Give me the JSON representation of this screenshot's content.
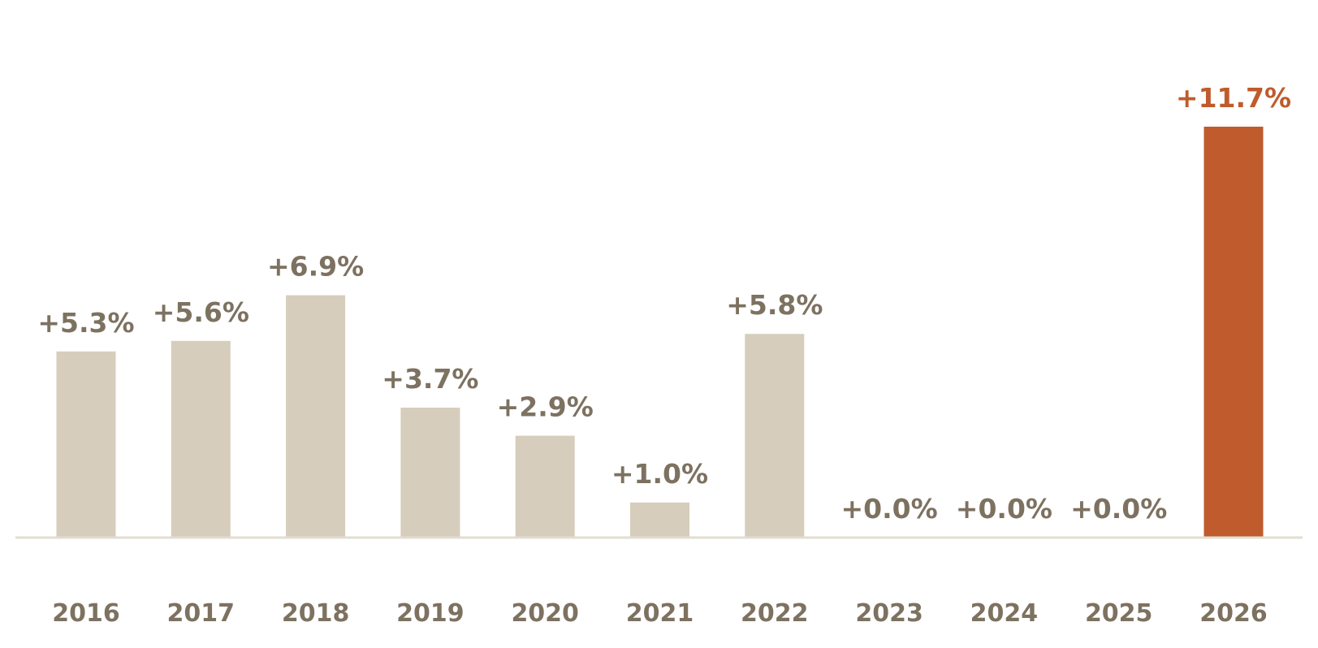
{
  "chart_data": {
    "type": "bar",
    "title": "",
    "xlabel": "",
    "ylabel": "",
    "categories": [
      "2016",
      "2017",
      "2018",
      "2019",
      "2020",
      "2021",
      "2022",
      "2023",
      "2024",
      "2025",
      "2026"
    ],
    "values": [
      5.3,
      5.6,
      6.9,
      3.7,
      2.9,
      1.0,
      5.8,
      0.0,
      0.0,
      0.0,
      11.7
    ],
    "value_labels": [
      "+5.3%",
      "+5.6%",
      "+6.9%",
      "+3.7%",
      "+2.9%",
      "+1.0%",
      "+5.8%",
      "+0.0%",
      "+0.0%",
      "+0.0%",
      "+11.7%"
    ],
    "highlight_index": 10,
    "ylim": [
      0,
      11.7
    ],
    "grid": false,
    "legend": "none"
  },
  "colors": {
    "bar": "#d6cdbc",
    "highlight": "#bf5b2c",
    "label": "#7d7160",
    "baseline": "#e2ddd2"
  }
}
